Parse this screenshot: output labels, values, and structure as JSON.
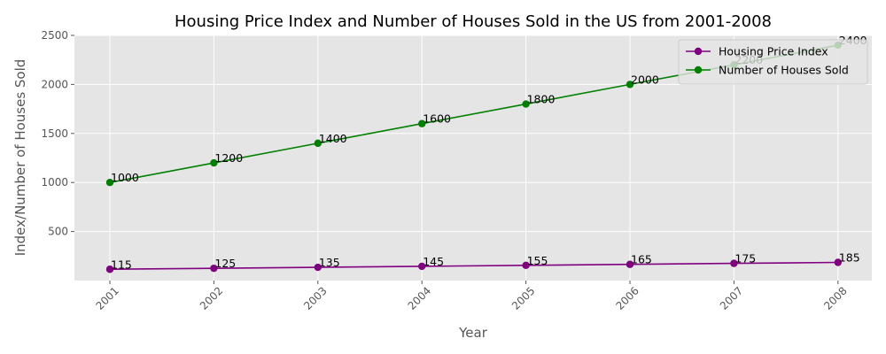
{
  "chart_data": {
    "type": "line",
    "title": "Housing Price Index and Number of Houses Sold in the US from 2001-2008",
    "xlabel": "Year",
    "ylabel": "Index/Number of Houses Sold",
    "categories": [
      "2001",
      "2002",
      "2003",
      "2004",
      "2005",
      "2006",
      "2007",
      "2008"
    ],
    "series": [
      {
        "name": "Housing Price Index",
        "color": "#800080",
        "values": [
          115,
          125,
          135,
          145,
          155,
          165,
          175,
          185
        ]
      },
      {
        "name": "Number of Houses Sold",
        "color": "#008000",
        "values": [
          1000,
          1200,
          1400,
          1600,
          1800,
          2000,
          2200,
          2400
        ]
      }
    ],
    "ylim": [
      0,
      2500
    ],
    "yticks": [
      500,
      1000,
      1500,
      2000,
      2500
    ],
    "grid": true,
    "legend_position": "top-right",
    "background": "#e5e5e5"
  }
}
